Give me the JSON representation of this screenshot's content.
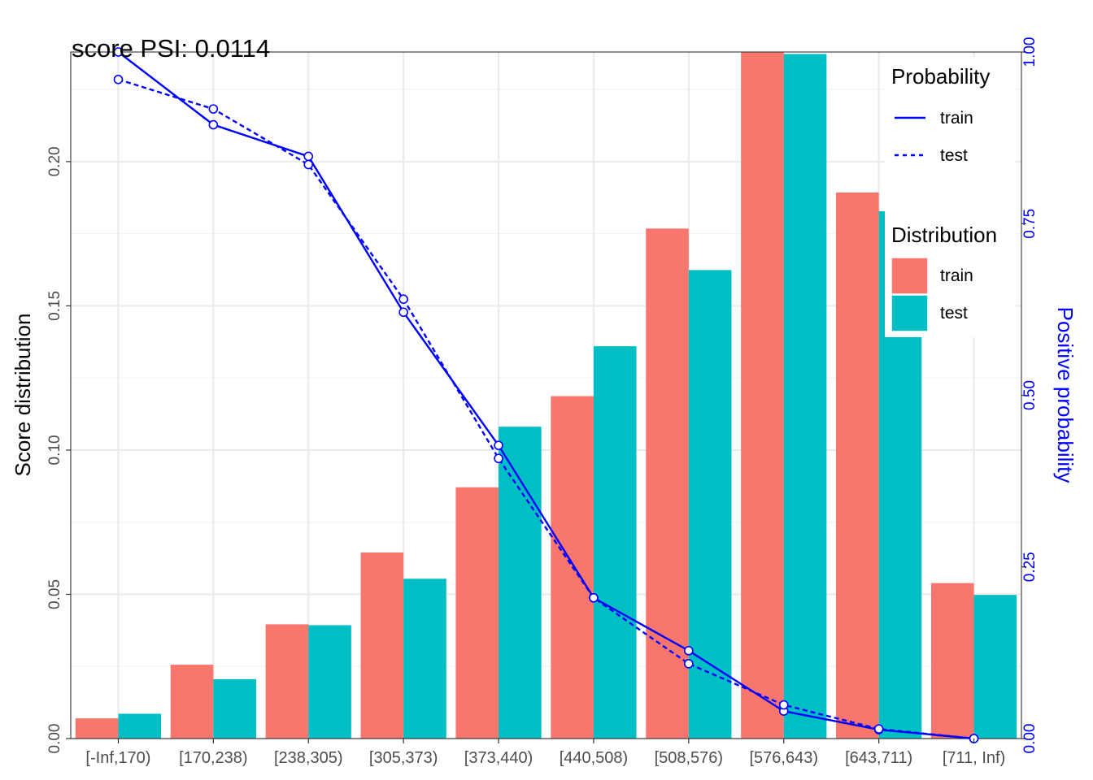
{
  "chart_data": {
    "type": "bar",
    "title": "score PSI: 0.0114",
    "ylabel": "Score distribution",
    "y2label": "Positive probability",
    "categories": [
      "[-Inf,170)",
      "[170,238)",
      "[238,305)",
      "[305,373)",
      "[373,440)",
      "[440,508)",
      "[508,576)",
      "[576,643)",
      "[643,711)",
      "[711, Inf)"
    ],
    "ylim": [
      0,
      0.238
    ],
    "y_ticks": [
      "0.00",
      "0.05",
      "0.10",
      "0.15",
      "0.20"
    ],
    "y2lim": [
      0,
      1
    ],
    "y2_ticks": [
      "0.00",
      "0.25",
      "0.50",
      "0.75",
      "1.00"
    ],
    "grid": true,
    "series": [
      {
        "name": "train",
        "kind": "bar",
        "color": "#F8766D",
        "values": [
          0.007,
          0.0256,
          0.0396,
          0.0645,
          0.0871,
          0.1187,
          0.1768,
          0.2383,
          0.1893,
          0.0539
        ]
      },
      {
        "name": "test",
        "kind": "bar",
        "color": "#00BFC4",
        "values": [
          0.0086,
          0.0206,
          0.0393,
          0.0554,
          0.1081,
          0.136,
          0.1624,
          0.2373,
          0.1828,
          0.0498
        ]
      }
    ],
    "lines": [
      {
        "name": "train",
        "style": "solid",
        "color": "#0000FF",
        "values": [
          1.0,
          0.894,
          0.848,
          0.621,
          0.427,
          0.205,
          0.128,
          0.04,
          0.013,
          0.0
        ]
      },
      {
        "name": "test",
        "style": "dashed",
        "color": "#0000FF",
        "values": [
          0.96,
          0.917,
          0.836,
          0.64,
          0.408,
          0.205,
          0.109,
          0.049,
          0.014,
          0.0
        ]
      }
    ],
    "legend": {
      "position": "top-right",
      "line_title": "Probability",
      "line_items": [
        "train",
        "test"
      ],
      "bar_title": "Distribution",
      "bar_items": [
        "train",
        "test"
      ]
    }
  }
}
